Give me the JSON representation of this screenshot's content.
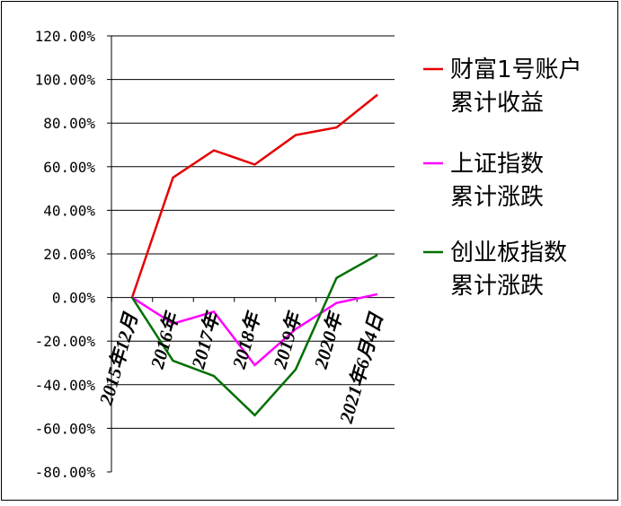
{
  "chart_data": {
    "type": "line",
    "categories": [
      "2015年12月",
      "2016年",
      "2017年",
      "2018年",
      "2019年",
      "2020年",
      "2021年6月4日"
    ],
    "ylim": [
      -80,
      120
    ],
    "yticks": [
      "120.00%",
      "100.00%",
      "80.00%",
      "60.00%",
      "40.00%",
      "20.00%",
      "0.00%",
      "-20.00%",
      "-40.00%",
      "-60.00%",
      "-80.00%"
    ],
    "grid": true,
    "legend_position": "right",
    "series": [
      {
        "name_lines": [
          "财富1号账户",
          "累计收益"
        ],
        "color": "#e60000",
        "values": [
          0,
          55,
          67.5,
          61,
          74.5,
          78,
          93
        ]
      },
      {
        "name_lines": [
          "上证指数",
          "累计涨跌"
        ],
        "color": "#ff00ff",
        "values": [
          0,
          -12,
          -6.5,
          -31,
          -14.5,
          -2.5,
          1.5
        ]
      },
      {
        "name_lines": [
          "创业板指数",
          "累计涨跌"
        ],
        "color": "#007000",
        "values": [
          0,
          -29,
          -36,
          -54,
          -33,
          9,
          19.5
        ]
      }
    ]
  }
}
